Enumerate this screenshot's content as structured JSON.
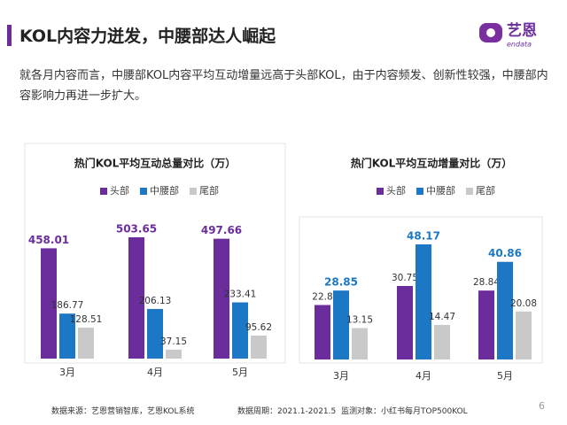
{
  "header": {
    "title": "KOL内容力迸发，中腰部达人崛起"
  },
  "logo": {
    "name": "艺恩",
    "sub": "endata"
  },
  "paragraph": "就各月内容而言，中腰部KOL内容平均互动增量远高于头部KOL，由于内容频发、创新性较强，中腰部内容影响力再进一步扩大。",
  "chart_data": [
    {
      "type": "bar",
      "title": "热门KOL平均互动总量对比（万）",
      "categories": [
        "3月",
        "4月",
        "5月"
      ],
      "series": [
        {
          "name": "头部",
          "color": "#6b2d9c",
          "values": [
            458.01,
            503.65,
            497.66
          ],
          "emphasis": true
        },
        {
          "name": "中腰部",
          "color": "#1c78c4",
          "values": [
            186.77,
            206.13,
            233.41
          ]
        },
        {
          "name": "尾部",
          "color": "#c9c9c9",
          "values": [
            128.51,
            37.15,
            95.62
          ]
        }
      ]
    },
    {
      "type": "bar",
      "title": "热门KOL平均互动增量对比（万）",
      "categories": [
        "3月",
        "4月",
        "5月"
      ],
      "series": [
        {
          "name": "头部",
          "color": "#6b2d9c",
          "values": [
            22.8,
            30.75,
            28.84
          ]
        },
        {
          "name": "中腰部",
          "color": "#1c78c4",
          "values": [
            28.85,
            48.17,
            40.86
          ],
          "emphasis": true
        },
        {
          "name": "尾部",
          "color": "#c9c9c9",
          "values": [
            13.15,
            14.47,
            20.08
          ]
        }
      ]
    }
  ],
  "footer": {
    "source": "数据来源：艺恩营销智库，艺恩KOL系统",
    "period": "数据周期：2021.1-2021.5",
    "target": "监测对象：小红书每月TOP500KOL",
    "page": "6"
  }
}
